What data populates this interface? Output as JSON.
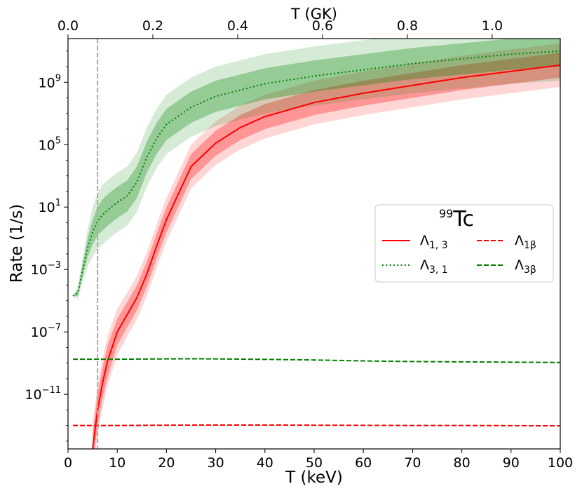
{
  "chart_data": {
    "type": "line",
    "title": "",
    "xlabel": "T (keV)",
    "xlabel_top": "T (GK)",
    "ylabel": "Rate (1/s)",
    "xlim": [
      0,
      100
    ],
    "ylim_log10": [
      -14.5,
      11.8
    ],
    "y_scale": "log",
    "grid": false,
    "legend": {
      "title": "99Tc",
      "title_sup": "99",
      "title_main": "Tc",
      "placement": "center-right"
    },
    "x_ticks": [
      "0",
      "10",
      "20",
      "30",
      "40",
      "50",
      "60",
      "70",
      "80",
      "90",
      "100"
    ],
    "x_tick_values": [
      0,
      10,
      20,
      30,
      40,
      50,
      60,
      70,
      80,
      90,
      100
    ],
    "top_ticks": [
      "0.0",
      "0.2",
      "0.4",
      "0.6",
      "0.8",
      "1.0"
    ],
    "top_tick_values_gk": [
      0.0,
      0.2,
      0.4,
      0.6,
      0.8,
      1.0
    ],
    "y_ticks": [
      {
        "exp": -11,
        "base": "10",
        "sup": "−11"
      },
      {
        "exp": -7,
        "base": "10",
        "sup": "−7"
      },
      {
        "exp": -3,
        "base": "10",
        "sup": "−3"
      },
      {
        "exp": 1,
        "base": "10",
        "sup": "1"
      },
      {
        "exp": 5,
        "base": "10",
        "sup": "5"
      },
      {
        "exp": 9,
        "base": "10",
        "sup": "9"
      }
    ],
    "vline_x": 6,
    "series": [
      {
        "name": "Λ1, 3",
        "label_main": "Λ",
        "label_sub": "1, 3",
        "color": "#ff0000",
        "style": "solid",
        "x": [
          5,
          6,
          7,
          8,
          10,
          12,
          14,
          16,
          18,
          20,
          25,
          30,
          35,
          40,
          50,
          60,
          70,
          80,
          90,
          100
        ],
        "log10_y": [
          -14.5,
          -12.0,
          -10.3,
          -8.9,
          -7.0,
          -5.9,
          -4.8,
          -3.3,
          -1.5,
          0.2,
          3.6,
          5.1,
          6.1,
          6.8,
          7.7,
          8.3,
          8.8,
          9.3,
          9.7,
          10.1
        ],
        "band_inner": [
          1.0,
          1.0,
          1.0,
          1.0,
          0.85,
          0.8,
          0.8,
          0.8,
          0.8,
          0.8,
          0.8,
          0.8,
          0.8,
          0.8,
          0.8,
          0.8,
          0.8,
          0.8,
          0.8,
          0.8
        ],
        "band_outer": [
          1.6,
          1.6,
          1.6,
          1.6,
          1.5,
          1.4,
          1.4,
          1.4,
          1.4,
          1.4,
          1.4,
          1.4,
          1.4,
          1.4,
          1.4,
          1.4,
          1.4,
          1.4,
          1.4,
          1.4
        ]
      },
      {
        "name": "Λ3, 1",
        "label_main": "Λ",
        "label_sub": "3, 1",
        "color": "#008000",
        "style": "dotted",
        "x": [
          1,
          2,
          3,
          4,
          5,
          6,
          7,
          8,
          10,
          12,
          14,
          16,
          18,
          20,
          25,
          30,
          35,
          40,
          50,
          60,
          70,
          80,
          90,
          100
        ],
        "log10_y": [
          -4.7,
          -4.5,
          -3.0,
          -1.6,
          -0.6,
          0.1,
          0.5,
          0.8,
          1.3,
          1.7,
          2.6,
          4.2,
          5.4,
          6.3,
          7.4,
          8.1,
          8.5,
          8.9,
          9.4,
          9.8,
          10.2,
          10.5,
          10.8,
          11.0
        ],
        "band_inner": [
          0.0,
          0.2,
          0.4,
          0.6,
          0.8,
          0.9,
          1.0,
          1.0,
          1.0,
          1.0,
          1.0,
          1.0,
          1.0,
          1.0,
          1.0,
          1.0,
          1.0,
          1.0,
          1.0,
          1.0,
          1.0,
          1.0,
          1.0,
          1.0
        ],
        "band_outer": [
          0.0,
          0.4,
          0.8,
          1.2,
          1.6,
          1.8,
          1.9,
          1.9,
          1.9,
          1.9,
          1.9,
          1.9,
          1.9,
          1.9,
          1.9,
          1.9,
          1.9,
          1.9,
          1.9,
          1.9,
          1.9,
          1.9,
          1.9,
          1.9
        ]
      },
      {
        "name": "Λ1β",
        "label_main": "Λ",
        "label_sub": "1β",
        "color": "#ff0000",
        "style": "dashed",
        "x": [
          1,
          10,
          20,
          30,
          40,
          50,
          60,
          70,
          80,
          90,
          100
        ],
        "log10_y": [
          -13.0,
          -13.0,
          -12.98,
          -12.97,
          -12.97,
          -12.98,
          -12.99,
          -13.0,
          -13.0,
          -13.01,
          -13.02
        ]
      },
      {
        "name": "Λ3β",
        "label_main": "Λ",
        "label_sub": "3β",
        "color": "#008000",
        "style": "dashed",
        "x": [
          1,
          10,
          20,
          25,
          30,
          40,
          50,
          60,
          70,
          80,
          90,
          100
        ],
        "log10_y": [
          -8.75,
          -8.75,
          -8.73,
          -8.72,
          -8.73,
          -8.76,
          -8.8,
          -8.86,
          -8.9,
          -8.92,
          -8.94,
          -8.96
        ]
      }
    ]
  }
}
